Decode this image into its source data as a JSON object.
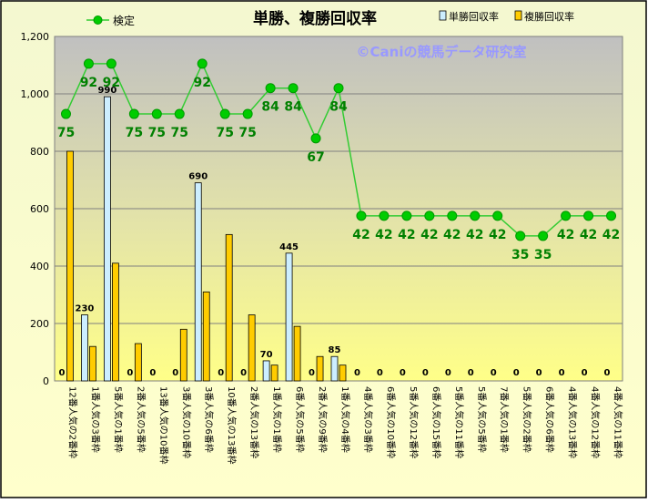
{
  "chart_data": {
    "type": "bar+line",
    "title": "単勝、複勝回収率",
    "watermark": "©Caniの競馬データ研究室",
    "ylim": [
      0,
      1200
    ],
    "yticks": [
      "0",
      "200",
      "400",
      "600",
      "800",
      "1,000",
      "1,200"
    ],
    "ytick_values": [
      0,
      200,
      400,
      600,
      800,
      1000,
      1200
    ],
    "categories": [
      "12番人気の2番枠",
      "1番人気の3番枠",
      "5番人気の1番枠",
      "2番人気の5番枠",
      "13番人気の10番枠",
      "3番人気の10番枠",
      "3番人気の6番枠",
      "10番人気の13番枠",
      "2番人気の13番枠",
      "1番人気の1番枠",
      "6番人気の5番枠",
      "2番人気の9番枠",
      "1番人気の4番枠",
      "4番人気の3番枠",
      "6番人気の10番枠",
      "5番人気の12番枠",
      "6番人気の15番枠",
      "5番人気の11番枠",
      "5番人気の5番枠",
      "7番人気の1番枠",
      "5番人気の2番枠",
      "6番人気の6番枠",
      "4番人気の13番枠",
      "4番人気の12番枠",
      "4番人気の11番枠"
    ],
    "legend_position": "top",
    "series": [
      {
        "name": "単勝回収率",
        "kind": "bar",
        "color": "#cceeff",
        "values": [
          0,
          230,
          990,
          0,
          0,
          0,
          690,
          0,
          0,
          70,
          445,
          0,
          85,
          0,
          0,
          0,
          0,
          0,
          0,
          0,
          0,
          0,
          0,
          0,
          0
        ],
        "labels": [
          "0",
          "230",
          "990",
          "0",
          "0",
          "0",
          "690",
          "0",
          "0",
          "70",
          "445",
          "0",
          "85",
          "0",
          "0",
          "0",
          "0",
          "0",
          "0",
          "0",
          "0",
          "0",
          "0",
          "0",
          "0"
        ]
      },
      {
        "name": "複勝回収率",
        "kind": "bar",
        "color": "#ffcc00",
        "values": [
          800,
          120,
          410,
          130,
          0,
          180,
          310,
          510,
          230,
          55,
          190,
          85,
          55,
          0,
          0,
          0,
          0,
          0,
          0,
          0,
          0,
          0,
          0,
          0,
          0
        ]
      },
      {
        "name": "検定",
        "kind": "line",
        "color": "#33cc33",
        "label_color": "#008000",
        "values": [
          930,
          1105,
          1105,
          930,
          930,
          930,
          1105,
          930,
          930,
          1020,
          1020,
          845,
          1020,
          575,
          575,
          575,
          575,
          575,
          575,
          575,
          505,
          505,
          575,
          575,
          575
        ],
        "labels": [
          "75",
          "92",
          "92",
          "75",
          "75",
          "75",
          "92",
          "75",
          "75",
          "84",
          "84",
          "67",
          "84",
          "42",
          "42",
          "42",
          "42",
          "42",
          "42",
          "42",
          "35",
          "35",
          "42",
          "42",
          "42"
        ]
      }
    ]
  }
}
